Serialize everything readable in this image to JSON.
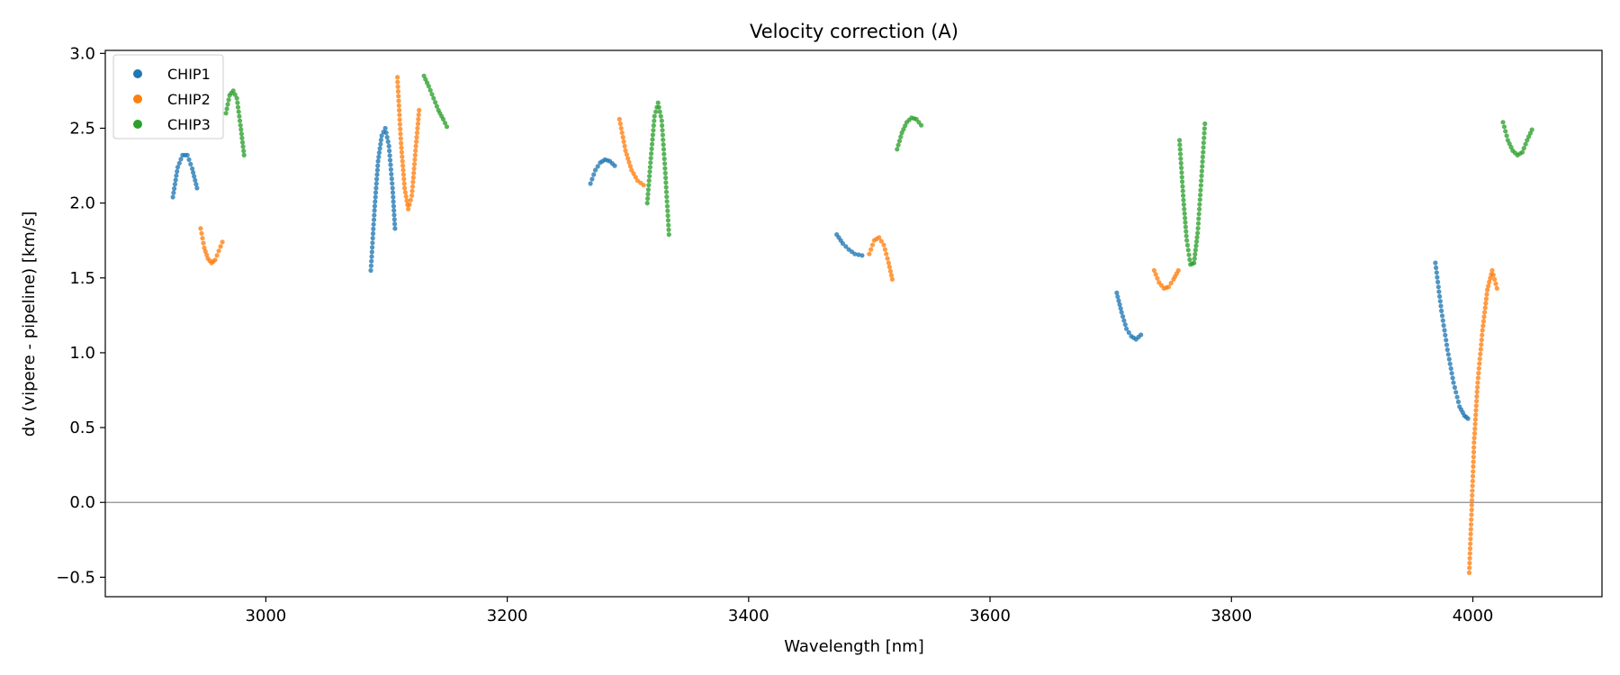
{
  "chart_data": {
    "type": "scatter",
    "title": "Velocity correction (A)",
    "xlabel": "Wavelength [nm]",
    "ylabel": "dv (vipere - pipeline) [km/s]",
    "xlim": [
      2867,
      4107
    ],
    "ylim": [
      -0.63,
      3.02
    ],
    "xticks": [
      3000,
      3200,
      3400,
      3600,
      3800,
      4000
    ],
    "yticks": [
      -0.5,
      0.0,
      0.5,
      1.0,
      1.5,
      2.0,
      2.5,
      3.0
    ],
    "reference_line_y": 0.0,
    "legend_position": "upper-left",
    "series": [
      {
        "name": "CHIP1",
        "color": "#1f77b4",
        "segments": [
          {
            "x": [
              2923,
              2927,
              2931,
              2935,
              2939,
              2943
            ],
            "y": [
              2.04,
              2.24,
              2.32,
              2.32,
              2.23,
              2.1
            ]
          },
          {
            "x": [
              3087,
              3090,
              3093,
              3096,
              3099,
              3102,
              3105,
              3107
            ],
            "y": [
              1.55,
              1.95,
              2.28,
              2.45,
              2.5,
              2.38,
              2.1,
              1.83
            ]
          },
          {
            "x": [
              3269,
              3273,
              3277,
              3281,
              3285,
              3289
            ],
            "y": [
              2.13,
              2.22,
              2.27,
              2.29,
              2.28,
              2.25
            ]
          },
          {
            "x": [
              3473,
              3478,
              3483,
              3488,
              3494
            ],
            "y": [
              1.79,
              1.73,
              1.69,
              1.66,
              1.65
            ]
          },
          {
            "x": [
              3705,
              3709,
              3713,
              3717,
              3721,
              3725
            ],
            "y": [
              1.4,
              1.27,
              1.16,
              1.11,
              1.09,
              1.12
            ]
          },
          {
            "x": [
              3969,
              3974,
              3979,
              3984,
              3989,
              3993,
              3996
            ],
            "y": [
              1.6,
              1.28,
              1.02,
              0.8,
              0.64,
              0.58,
              0.56
            ]
          }
        ]
      },
      {
        "name": "CHIP2",
        "color": "#ff7f0e",
        "segments": [
          {
            "x": [
              2946,
              2949,
              2952,
              2955,
              2958,
              2961,
              2964
            ],
            "y": [
              1.83,
              1.7,
              1.63,
              1.6,
              1.62,
              1.68,
              1.74
            ]
          },
          {
            "x": [
              3109,
              3112,
              3115,
              3118,
              3121,
              3124,
              3127
            ],
            "y": [
              2.84,
              2.4,
              2.1,
              1.96,
              2.05,
              2.35,
              2.62
            ]
          },
          {
            "x": [
              3293,
              3298,
              3303,
              3308,
              3313
            ],
            "y": [
              2.56,
              2.35,
              2.22,
              2.15,
              2.12
            ]
          },
          {
            "x": [
              3500,
              3504,
              3508,
              3512,
              3516,
              3519
            ],
            "y": [
              1.66,
              1.75,
              1.77,
              1.72,
              1.6,
              1.49
            ]
          },
          {
            "x": [
              3736,
              3740,
              3744,
              3748,
              3752,
              3756
            ],
            "y": [
              1.55,
              1.47,
              1.43,
              1.44,
              1.49,
              1.55
            ]
          },
          {
            "x": [
              3997,
              3999,
              4001,
              4004,
              4008,
              4012,
              4016,
              4020
            ],
            "y": [
              -0.47,
              -0.05,
              0.4,
              0.8,
              1.15,
              1.42,
              1.55,
              1.43
            ]
          }
        ]
      },
      {
        "name": "CHIP3",
        "color": "#2ca02c",
        "segments": [
          {
            "x": [
              2967,
              2970,
              2973,
              2976,
              2979,
              2982
            ],
            "y": [
              2.6,
              2.72,
              2.75,
              2.7,
              2.52,
              2.32
            ]
          },
          {
            "x": [
              3131,
              3135,
              3139,
              3143,
              3147,
              3150
            ],
            "y": [
              2.85,
              2.78,
              2.7,
              2.62,
              2.56,
              2.51
            ]
          },
          {
            "x": [
              3316,
              3319,
              3322,
              3325,
              3328,
              3331,
              3334
            ],
            "y": [
              2.0,
              2.3,
              2.58,
              2.67,
              2.55,
              2.2,
              1.79
            ]
          },
          {
            "x": [
              3523,
              3527,
              3531,
              3535,
              3539,
              3543
            ],
            "y": [
              2.36,
              2.47,
              2.54,
              2.57,
              2.56,
              2.52
            ]
          },
          {
            "x": [
              3757,
              3760,
              3763,
              3766,
              3769,
              3772,
              3775,
              3778
            ],
            "y": [
              2.42,
              2.05,
              1.75,
              1.59,
              1.6,
              1.8,
              2.15,
              2.53
            ]
          },
          {
            "x": [
              4025,
              4029,
              4033,
              4037,
              4041,
              4045,
              4049
            ],
            "y": [
              2.54,
              2.42,
              2.35,
              2.32,
              2.34,
              2.42,
              2.49
            ]
          }
        ]
      }
    ]
  }
}
